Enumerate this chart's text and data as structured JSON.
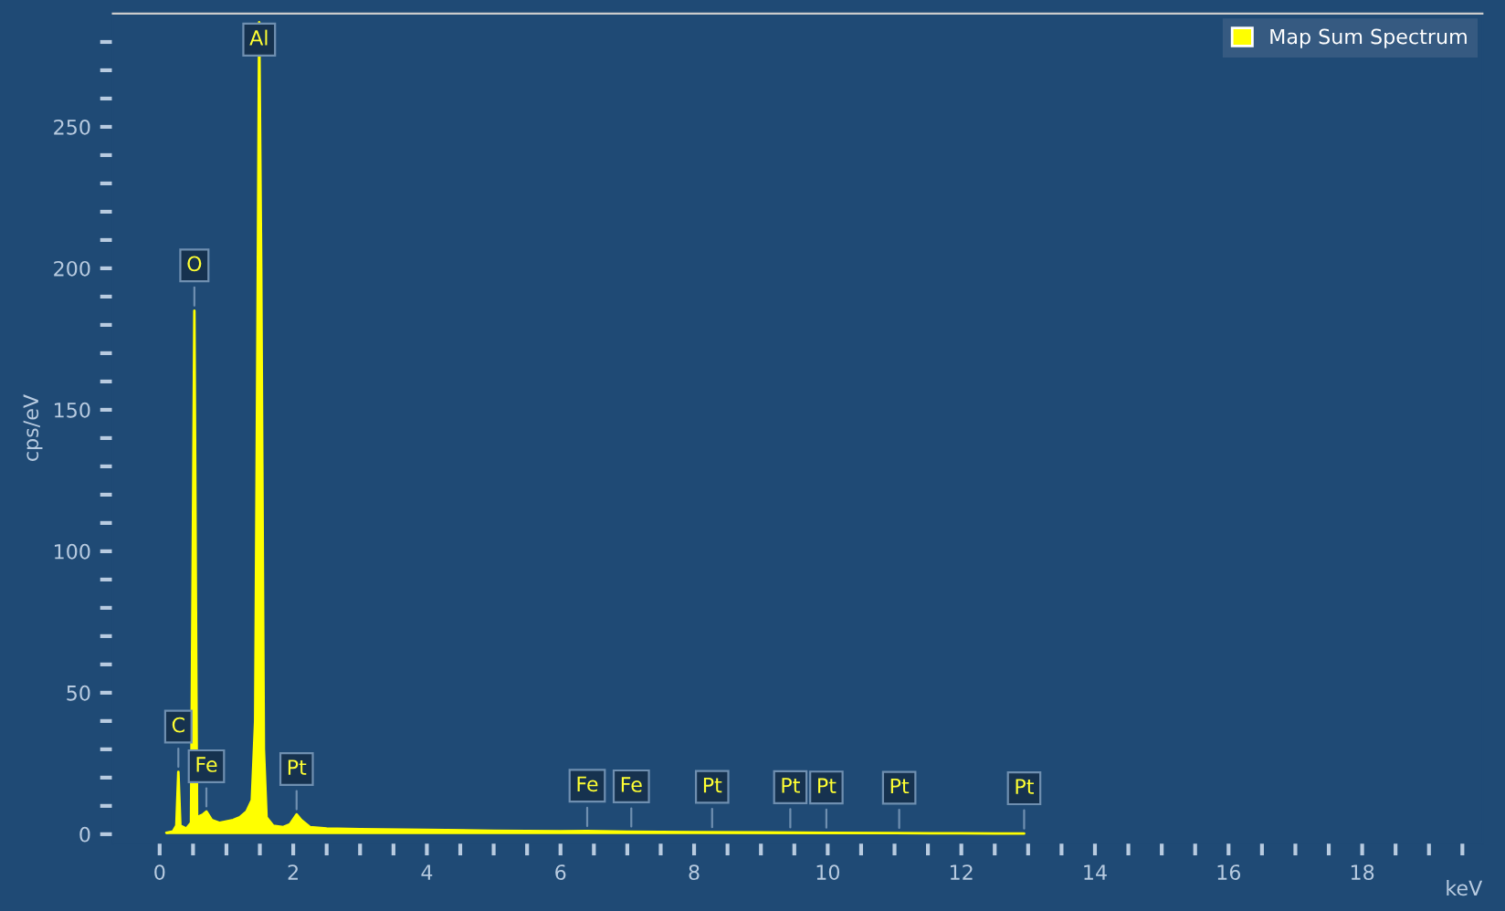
{
  "chart_data": {
    "type": "area",
    "xlabel": "keV",
    "ylabel": "cps/eV",
    "series": [
      {
        "name": "Map Sum Spectrum",
        "color": "#ffff00",
        "x": [
          0.1,
          0.2,
          0.25,
          0.28,
          0.31,
          0.4,
          0.47,
          0.52,
          0.56,
          0.65,
          0.7,
          0.78,
          0.9,
          1.0,
          1.1,
          1.2,
          1.3,
          1.38,
          1.43,
          1.47,
          1.49,
          1.52,
          1.56,
          1.6,
          1.7,
          1.85,
          1.95,
          2.05,
          2.12,
          2.25,
          2.5,
          3,
          4,
          5,
          6,
          6.4,
          7,
          8,
          9,
          10,
          11,
          12,
          12.5,
          12.94
        ],
        "values": [
          0.5,
          1,
          3,
          22,
          3,
          2,
          4,
          185,
          6,
          7,
          8,
          5,
          4,
          4.5,
          5,
          6,
          8,
          12,
          40,
          200,
          287,
          200,
          30,
          6,
          3,
          2.5,
          3.5,
          7,
          5,
          2.5,
          2,
          1.8,
          1.5,
          1.2,
          1,
          1.1,
          0.9,
          0.7,
          0.6,
          0.5,
          0.4,
          0.3,
          0.2,
          0.2
        ]
      }
    ],
    "annotations": [
      {
        "text": "C",
        "x": 0.28,
        "y": 22
      },
      {
        "text": "O",
        "x": 0.52,
        "y": 185
      },
      {
        "text": "Al",
        "x": 1.49,
        "y": 287
      },
      {
        "text": "Fe",
        "x": 0.7,
        "y": 8
      },
      {
        "text": "Pt",
        "x": 2.05,
        "y": 7
      },
      {
        "text": "Fe",
        "x": 6.4,
        "y": 1.1
      },
      {
        "text": "Fe",
        "x": 7.06,
        "y": 0.9
      },
      {
        "text": "Pt",
        "x": 8.27,
        "y": 0.7
      },
      {
        "text": "Pt",
        "x": 9.44,
        "y": 0.6
      },
      {
        "text": "Pt",
        "x": 9.98,
        "y": 0.5
      },
      {
        "text": "Pt",
        "x": 11.07,
        "y": 0.4
      },
      {
        "text": "Pt",
        "x": 12.94,
        "y": 0.2
      }
    ],
    "xlim": [
      -0.7,
      19.8
    ],
    "ylim": [
      -3,
      290
    ],
    "xticks": [
      0,
      {
        "value": 0.5,
        "label": null
      },
      {
        "value": 1,
        "label": null
      },
      {
        "value": 1.5,
        "label": null
      },
      2,
      {
        "value": 2.5,
        "label": null
      },
      {
        "value": 3,
        "label": null
      },
      {
        "value": 3.5,
        "label": null
      },
      4,
      {
        "value": 4.5,
        "label": null
      },
      {
        "value": 5,
        "label": null
      },
      {
        "value": 5.5,
        "label": null
      },
      6,
      {
        "value": 6.5,
        "label": null
      },
      {
        "value": 7,
        "label": null
      },
      {
        "value": 7.5,
        "label": null
      },
      8,
      {
        "value": 8.5,
        "label": null
      },
      {
        "value": 9,
        "label": null
      },
      {
        "value": 9.5,
        "label": null
      },
      10,
      {
        "value": 10.5,
        "label": null
      },
      {
        "value": 11,
        "label": null
      },
      {
        "value": 11.5,
        "label": null
      },
      12,
      {
        "value": 12.5,
        "label": null
      },
      {
        "value": 13,
        "label": null
      },
      {
        "value": 13.5,
        "label": null
      },
      14,
      {
        "value": 14.5,
        "label": null
      },
      {
        "value": 15,
        "label": null
      },
      {
        "value": 15.5,
        "label": null
      },
      16,
      {
        "value": 16.5,
        "label": null
      },
      {
        "value": 17,
        "label": null
      },
      {
        "value": 17.5,
        "label": null
      },
      18,
      {
        "value": 18.5,
        "label": null
      },
      {
        "value": 19,
        "label": null
      },
      {
        "value": 19.5,
        "label": null
      }
    ],
    "yticks": [
      0,
      {
        "value": 10,
        "label": null
      },
      {
        "value": 20,
        "label": null
      },
      {
        "value": 30,
        "label": null
      },
      {
        "value": 40,
        "label": null
      },
      50,
      {
        "value": 60,
        "label": null
      },
      {
        "value": 70,
        "label": null
      },
      {
        "value": 80,
        "label": null
      },
      {
        "value": 90,
        "label": null
      },
      100,
      {
        "value": 110,
        "label": null
      },
      {
        "value": 120,
        "label": null
      },
      {
        "value": 130,
        "label": null
      },
      {
        "value": 140,
        "label": null
      },
      150,
      {
        "value": 160,
        "label": null
      },
      {
        "value": 170,
        "label": null
      },
      {
        "value": 180,
        "label": null
      },
      {
        "value": 190,
        "label": null
      },
      200,
      {
        "value": 210,
        "label": null
      },
      {
        "value": 220,
        "label": null
      },
      {
        "value": 230,
        "label": null
      },
      {
        "value": 240,
        "label": null
      },
      250,
      {
        "value": 260,
        "label": null
      },
      {
        "value": 270,
        "label": null
      },
      {
        "value": 280,
        "label": null
      }
    ],
    "grid": false,
    "legend": "top right",
    "marker": "none",
    "line_style": "solid"
  }
}
